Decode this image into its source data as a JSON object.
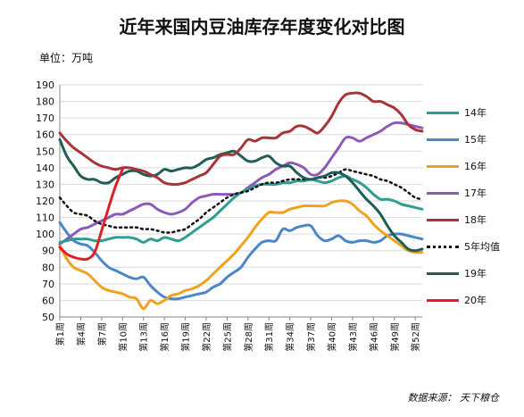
{
  "chart_data": {
    "type": "line",
    "title": "近年来国内豆油库存年度变化对比图",
    "unit": "单位：万吨",
    "source": "数据来源：  天下粮仓",
    "ylim": [
      50,
      190
    ],
    "yticks": [
      50,
      60,
      70,
      80,
      90,
      100,
      110,
      120,
      130,
      140,
      150,
      160,
      170,
      180,
      190
    ],
    "xticks": [
      "第1周",
      "第4周",
      "第7周",
      "第10周",
      "第13周",
      "第16周",
      "第19周",
      "第22周",
      "第25周",
      "第28周",
      "第31周",
      "第34周",
      "第37周",
      "第40周",
      "第43周",
      "第46周",
      "第49周",
      "第52周"
    ],
    "grid": "horizontal",
    "legend": "right",
    "series": [
      {
        "name": "14年",
        "color": "#2e9e92",
        "values": [
          95,
          96,
          97,
          97,
          97,
          96,
          96,
          97,
          98,
          98,
          98,
          97,
          95,
          97,
          96,
          98,
          97,
          96,
          98,
          101,
          104,
          107,
          110,
          114,
          118,
          122,
          125,
          127,
          129,
          130,
          130,
          130,
          131,
          131,
          132,
          132,
          133,
          132,
          131,
          132,
          134,
          135,
          133,
          131,
          128,
          124,
          121,
          121,
          120,
          118,
          117,
          116,
          115
        ]
      },
      {
        "name": "15年",
        "color": "#4a86c8",
        "values": [
          107,
          101,
          96,
          94,
          93,
          89,
          84,
          80,
          78,
          76,
          74,
          73,
          74,
          69,
          65,
          62,
          61,
          61,
          62,
          63,
          64,
          65,
          68,
          70,
          74,
          77,
          80,
          86,
          91,
          95,
          96,
          96,
          103,
          102,
          104,
          105,
          105,
          99,
          96,
          97,
          99,
          96,
          95,
          96,
          96,
          95,
          96,
          99,
          100,
          100,
          99,
          98,
          97
        ]
      },
      {
        "name": "16年",
        "color": "#f0a21f",
        "values": [
          93,
          85,
          80,
          78,
          76,
          72,
          68,
          66,
          65,
          64,
          62,
          61,
          55,
          60,
          58,
          60,
          63,
          64,
          66,
          67,
          69,
          72,
          76,
          80,
          84,
          88,
          93,
          98,
          104,
          109,
          113,
          113,
          113,
          115,
          116,
          117,
          117,
          117,
          117,
          119,
          120,
          120,
          118,
          114,
          111,
          106,
          102,
          99,
          96,
          93,
          90,
          89,
          89
        ]
      },
      {
        "name": "17年",
        "color": "#8e5ab7",
        "values": [
          94,
          97,
          100,
          103,
          104,
          106,
          108,
          110,
          112,
          112,
          114,
          116,
          118,
          118,
          115,
          113,
          112,
          113,
          115,
          119,
          122,
          123,
          124,
          124,
          124,
          124,
          125,
          128,
          131,
          134,
          136,
          139,
          141,
          143,
          142,
          140,
          136,
          136,
          140,
          146,
          152,
          158,
          158,
          156,
          158,
          160,
          162,
          165,
          167,
          167,
          166,
          165,
          164
        ]
      },
      {
        "name": "18年",
        "color": "#a8343a",
        "values": [
          161,
          156,
          152,
          149,
          146,
          143,
          141,
          140,
          139,
          140,
          140,
          139,
          138,
          136,
          134,
          131,
          130,
          130,
          131,
          133,
          135,
          137,
          142,
          147,
          148,
          148,
          152,
          157,
          156,
          158,
          158,
          158,
          161,
          162,
          165,
          165,
          163,
          161,
          165,
          171,
          179,
          184,
          185,
          185,
          183,
          180,
          180,
          178,
          176,
          172,
          166,
          163,
          162
        ]
      },
      {
        "name": "5年均值",
        "color": "#111111",
        "dotted": true,
        "values": [
          122,
          117,
          113,
          112,
          111,
          108,
          106,
          105,
          104,
          104,
          104,
          104,
          103,
          103,
          102,
          101,
          101,
          102,
          103,
          106,
          109,
          113,
          116,
          119,
          122,
          124,
          125,
          126,
          128,
          130,
          131,
          131,
          132,
          133,
          133,
          133,
          133,
          134,
          134,
          135,
          137,
          139,
          138,
          137,
          136,
          135,
          133,
          132,
          130,
          128,
          125,
          122,
          121
        ]
      },
      {
        "name": "19年",
        "color": "#1f5e57",
        "values": [
          157,
          147,
          141,
          135,
          133,
          133,
          131,
          131,
          134,
          136,
          138,
          138,
          136,
          135,
          136,
          139,
          138,
          139,
          140,
          140,
          142,
          145,
          146,
          148,
          149,
          150,
          147,
          144,
          144,
          146,
          147,
          143,
          141,
          141,
          137,
          134,
          133,
          134,
          135,
          137,
          137,
          135,
          131,
          126,
          121,
          117,
          112,
          105,
          99,
          95,
          91,
          90,
          91
        ]
      },
      {
        "name": "20年",
        "color": "#e21f26",
        "values": [
          92,
          88,
          86,
          85,
          85,
          89,
          102,
          116,
          129,
          139
        ]
      }
    ]
  }
}
